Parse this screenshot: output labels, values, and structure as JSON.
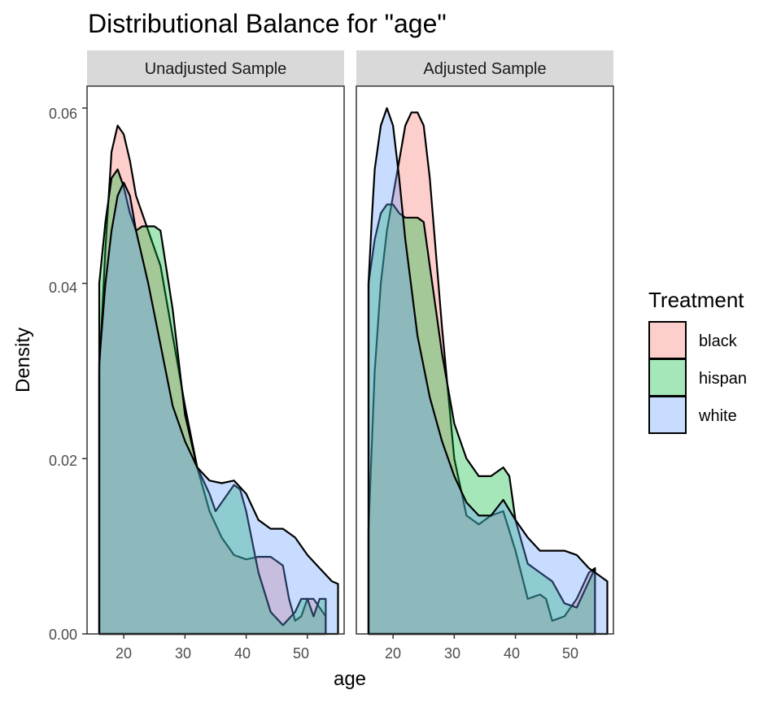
{
  "chart_data": {
    "type": "area",
    "title": "Distributional Balance for \"age\"",
    "xlabel": "age",
    "ylabel": "Density",
    "xlim": [
      14,
      56
    ],
    "ylim": [
      0,
      0.0625
    ],
    "x_ticks": [
      20,
      30,
      40,
      50
    ],
    "y_ticks": [
      0.0,
      0.02,
      0.04,
      0.06
    ],
    "y_tick_labels": [
      "0.00",
      "0.02",
      "0.04",
      "0.06"
    ],
    "grid": false,
    "legend": {
      "title": "Treatment",
      "position": "right",
      "entries": [
        {
          "name": "black",
          "color": "#F8766D"
        },
        {
          "name": "hispan",
          "color": "#00BA38"
        },
        {
          "name": "white",
          "color": "#619CFF"
        }
      ]
    },
    "fill_opacity": 0.35,
    "panels": [
      {
        "label": "Unadjusted Sample",
        "series": [
          {
            "name": "black",
            "color": "#F8766D",
            "points": [
              [
                16,
                0
              ],
              [
                16,
                0.03
              ],
              [
                17,
                0.044
              ],
              [
                18,
                0.055
              ],
              [
                19,
                0.058
              ],
              [
                20,
                0.057
              ],
              [
                21,
                0.054
              ],
              [
                22,
                0.05
              ],
              [
                24,
                0.046
              ],
              [
                26,
                0.042
              ],
              [
                28,
                0.034
              ],
              [
                30,
                0.026
              ],
              [
                32,
                0.019
              ],
              [
                34,
                0.014
              ],
              [
                36,
                0.011
              ],
              [
                38,
                0.009
              ],
              [
                40,
                0.0085
              ],
              [
                42,
                0.0088
              ],
              [
                44,
                0.0088
              ],
              [
                46,
                0.0078
              ],
              [
                47,
                0.004
              ],
              [
                48,
                0.0015
              ],
              [
                49,
                0.002
              ],
              [
                50,
                0.004
              ],
              [
                51,
                0.004
              ],
              [
                52,
                0.003
              ],
              [
                53,
                0.002
              ],
              [
                53,
                0
              ]
            ]
          },
          {
            "name": "hispan",
            "color": "#00BA38",
            "points": [
              [
                16,
                0
              ],
              [
                16,
                0.04
              ],
              [
                17,
                0.047
              ],
              [
                18,
                0.052
              ],
              [
                19,
                0.053
              ],
              [
                20,
                0.051
              ],
              [
                21,
                0.048
              ],
              [
                22,
                0.046
              ],
              [
                23,
                0.0465
              ],
              [
                24,
                0.0465
              ],
              [
                25,
                0.0465
              ],
              [
                26,
                0.046
              ],
              [
                28,
                0.037
              ],
              [
                30,
                0.025
              ],
              [
                32,
                0.019
              ],
              [
                34,
                0.016
              ],
              [
                35,
                0.014
              ],
              [
                36,
                0.015
              ],
              [
                38,
                0.017
              ],
              [
                39,
                0.0165
              ],
              [
                40,
                0.014
              ],
              [
                42,
                0.007
              ],
              [
                44,
                0.0025
              ],
              [
                46,
                0.001
              ],
              [
                48,
                0.0025
              ],
              [
                49,
                0.004
              ],
              [
                50,
                0.004
              ],
              [
                51,
                0.002
              ],
              [
                52,
                0.004
              ],
              [
                53,
                0.004
              ],
              [
                53,
                0
              ]
            ]
          },
          {
            "name": "white",
            "color": "#619CFF",
            "points": [
              [
                16,
                0
              ],
              [
                16,
                0.031
              ],
              [
                17,
                0.04
              ],
              [
                18,
                0.046
              ],
              [
                19,
                0.05
              ],
              [
                20,
                0.0515
              ],
              [
                21,
                0.05
              ],
              [
                22,
                0.046
              ],
              [
                24,
                0.04
              ],
              [
                26,
                0.033
              ],
              [
                28,
                0.026
              ],
              [
                30,
                0.022
              ],
              [
                32,
                0.019
              ],
              [
                34,
                0.0175
              ],
              [
                36,
                0.0172
              ],
              [
                38,
                0.0175
              ],
              [
                40,
                0.016
              ],
              [
                42,
                0.013
              ],
              [
                44,
                0.012
              ],
              [
                46,
                0.012
              ],
              [
                48,
                0.011
              ],
              [
                50,
                0.009
              ],
              [
                52,
                0.0075
              ],
              [
                54,
                0.006
              ],
              [
                55,
                0.0057
              ],
              [
                55,
                0
              ]
            ]
          }
        ]
      },
      {
        "label": "Adjusted Sample",
        "series": [
          {
            "name": "black",
            "color": "#F8766D",
            "points": [
              [
                16,
                0
              ],
              [
                16,
                0.012
              ],
              [
                17,
                0.03
              ],
              [
                18,
                0.04
              ],
              [
                19,
                0.046
              ],
              [
                20,
                0.05
              ],
              [
                21,
                0.054
              ],
              [
                22,
                0.058
              ],
              [
                23,
                0.0595
              ],
              [
                24,
                0.0595
              ],
              [
                25,
                0.058
              ],
              [
                26,
                0.052
              ],
              [
                28,
                0.035
              ],
              [
                30,
                0.02
              ],
              [
                32,
                0.0135
              ],
              [
                34,
                0.0125
              ],
              [
                36,
                0.0135
              ],
              [
                38,
                0.014
              ],
              [
                40,
                0.0095
              ],
              [
                42,
                0.004
              ],
              [
                44,
                0.0045
              ],
              [
                45,
                0.004
              ],
              [
                46,
                0.0015
              ],
              [
                48,
                0.002
              ],
              [
                50,
                0.004
              ],
              [
                52,
                0.007
              ],
              [
                53,
                0.0075
              ],
              [
                53,
                0
              ]
            ]
          },
          {
            "name": "hispan",
            "color": "#00BA38",
            "points": [
              [
                16,
                0
              ],
              [
                16,
                0.04
              ],
              [
                17,
                0.045
              ],
              [
                18,
                0.048
              ],
              [
                19,
                0.049
              ],
              [
                20,
                0.049
              ],
              [
                21,
                0.048
              ],
              [
                22,
                0.0475
              ],
              [
                23,
                0.0475
              ],
              [
                24,
                0.0475
              ],
              [
                25,
                0.047
              ],
              [
                26,
                0.042
              ],
              [
                28,
                0.032
              ],
              [
                30,
                0.024
              ],
              [
                32,
                0.02
              ],
              [
                34,
                0.018
              ],
              [
                36,
                0.018
              ],
              [
                37,
                0.0185
              ],
              [
                38,
                0.019
              ],
              [
                39,
                0.018
              ],
              [
                40,
                0.013
              ],
              [
                42,
                0.008
              ],
              [
                44,
                0.007
              ],
              [
                46,
                0.006
              ],
              [
                48,
                0.0035
              ],
              [
                50,
                0.003
              ],
              [
                52,
                0.006
              ],
              [
                53,
                0.0075
              ],
              [
                53,
                0
              ]
            ]
          },
          {
            "name": "white",
            "color": "#619CFF",
            "points": [
              [
                16,
                0
              ],
              [
                16,
                0.04
              ],
              [
                16.5,
                0.047
              ],
              [
                17,
                0.053
              ],
              [
                18,
                0.058
              ],
              [
                19,
                0.06
              ],
              [
                20,
                0.058
              ],
              [
                21,
                0.052
              ],
              [
                22,
                0.045
              ],
              [
                24,
                0.034
              ],
              [
                26,
                0.027
              ],
              [
                28,
                0.022
              ],
              [
                30,
                0.018
              ],
              [
                32,
                0.015
              ],
              [
                34,
                0.0135
              ],
              [
                36,
                0.0135
              ],
              [
                38,
                0.0153
              ],
              [
                40,
                0.013
              ],
              [
                42,
                0.011
              ],
              [
                44,
                0.0095
              ],
              [
                46,
                0.0095
              ],
              [
                48,
                0.0095
              ],
              [
                50,
                0.009
              ],
              [
                52,
                0.0075
              ],
              [
                54,
                0.0065
              ],
              [
                55,
                0.006
              ],
              [
                55,
                0
              ]
            ]
          }
        ]
      }
    ]
  }
}
